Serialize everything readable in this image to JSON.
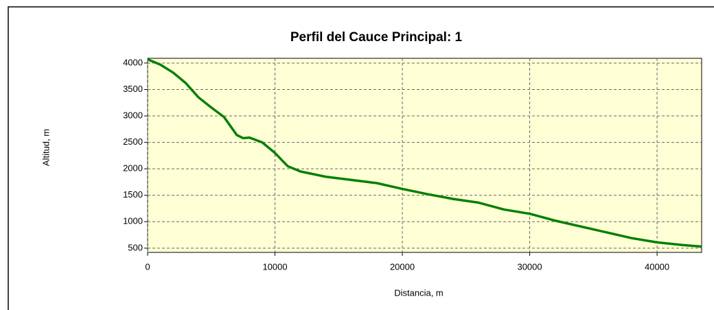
{
  "chart_data": {
    "type": "line",
    "title": "Perfil del Cauce Principal: 1",
    "x_label": "Distancia, m",
    "y_label": "Altitud, m",
    "x": [
      0,
      1000,
      2000,
      3000,
      4000,
      5000,
      6000,
      7000,
      7500,
      8000,
      9000,
      10000,
      11000,
      12000,
      14000,
      16000,
      18000,
      20000,
      22000,
      24000,
      26000,
      28000,
      30000,
      32000,
      34000,
      36000,
      38000,
      40000,
      42000,
      43500
    ],
    "series": [
      {
        "name": "Perfil",
        "color": "#008000",
        "values": [
          4070,
          3970,
          3820,
          3620,
          3350,
          3160,
          2980,
          2640,
          2580,
          2590,
          2500,
          2300,
          2050,
          1950,
          1850,
          1790,
          1730,
          1620,
          1520,
          1430,
          1360,
          1230,
          1150,
          1020,
          910,
          800,
          690,
          610,
          560,
          530
        ]
      }
    ],
    "xlim": [
      0,
      43500
    ],
    "ylim": [
      420,
      4090
    ],
    "xticks": [
      0,
      10000,
      20000,
      30000,
      40000
    ],
    "yticks": [
      500,
      1000,
      1500,
      2000,
      2500,
      3000,
      3500,
      4000
    ],
    "grid": true,
    "background": "#ffffd6"
  }
}
